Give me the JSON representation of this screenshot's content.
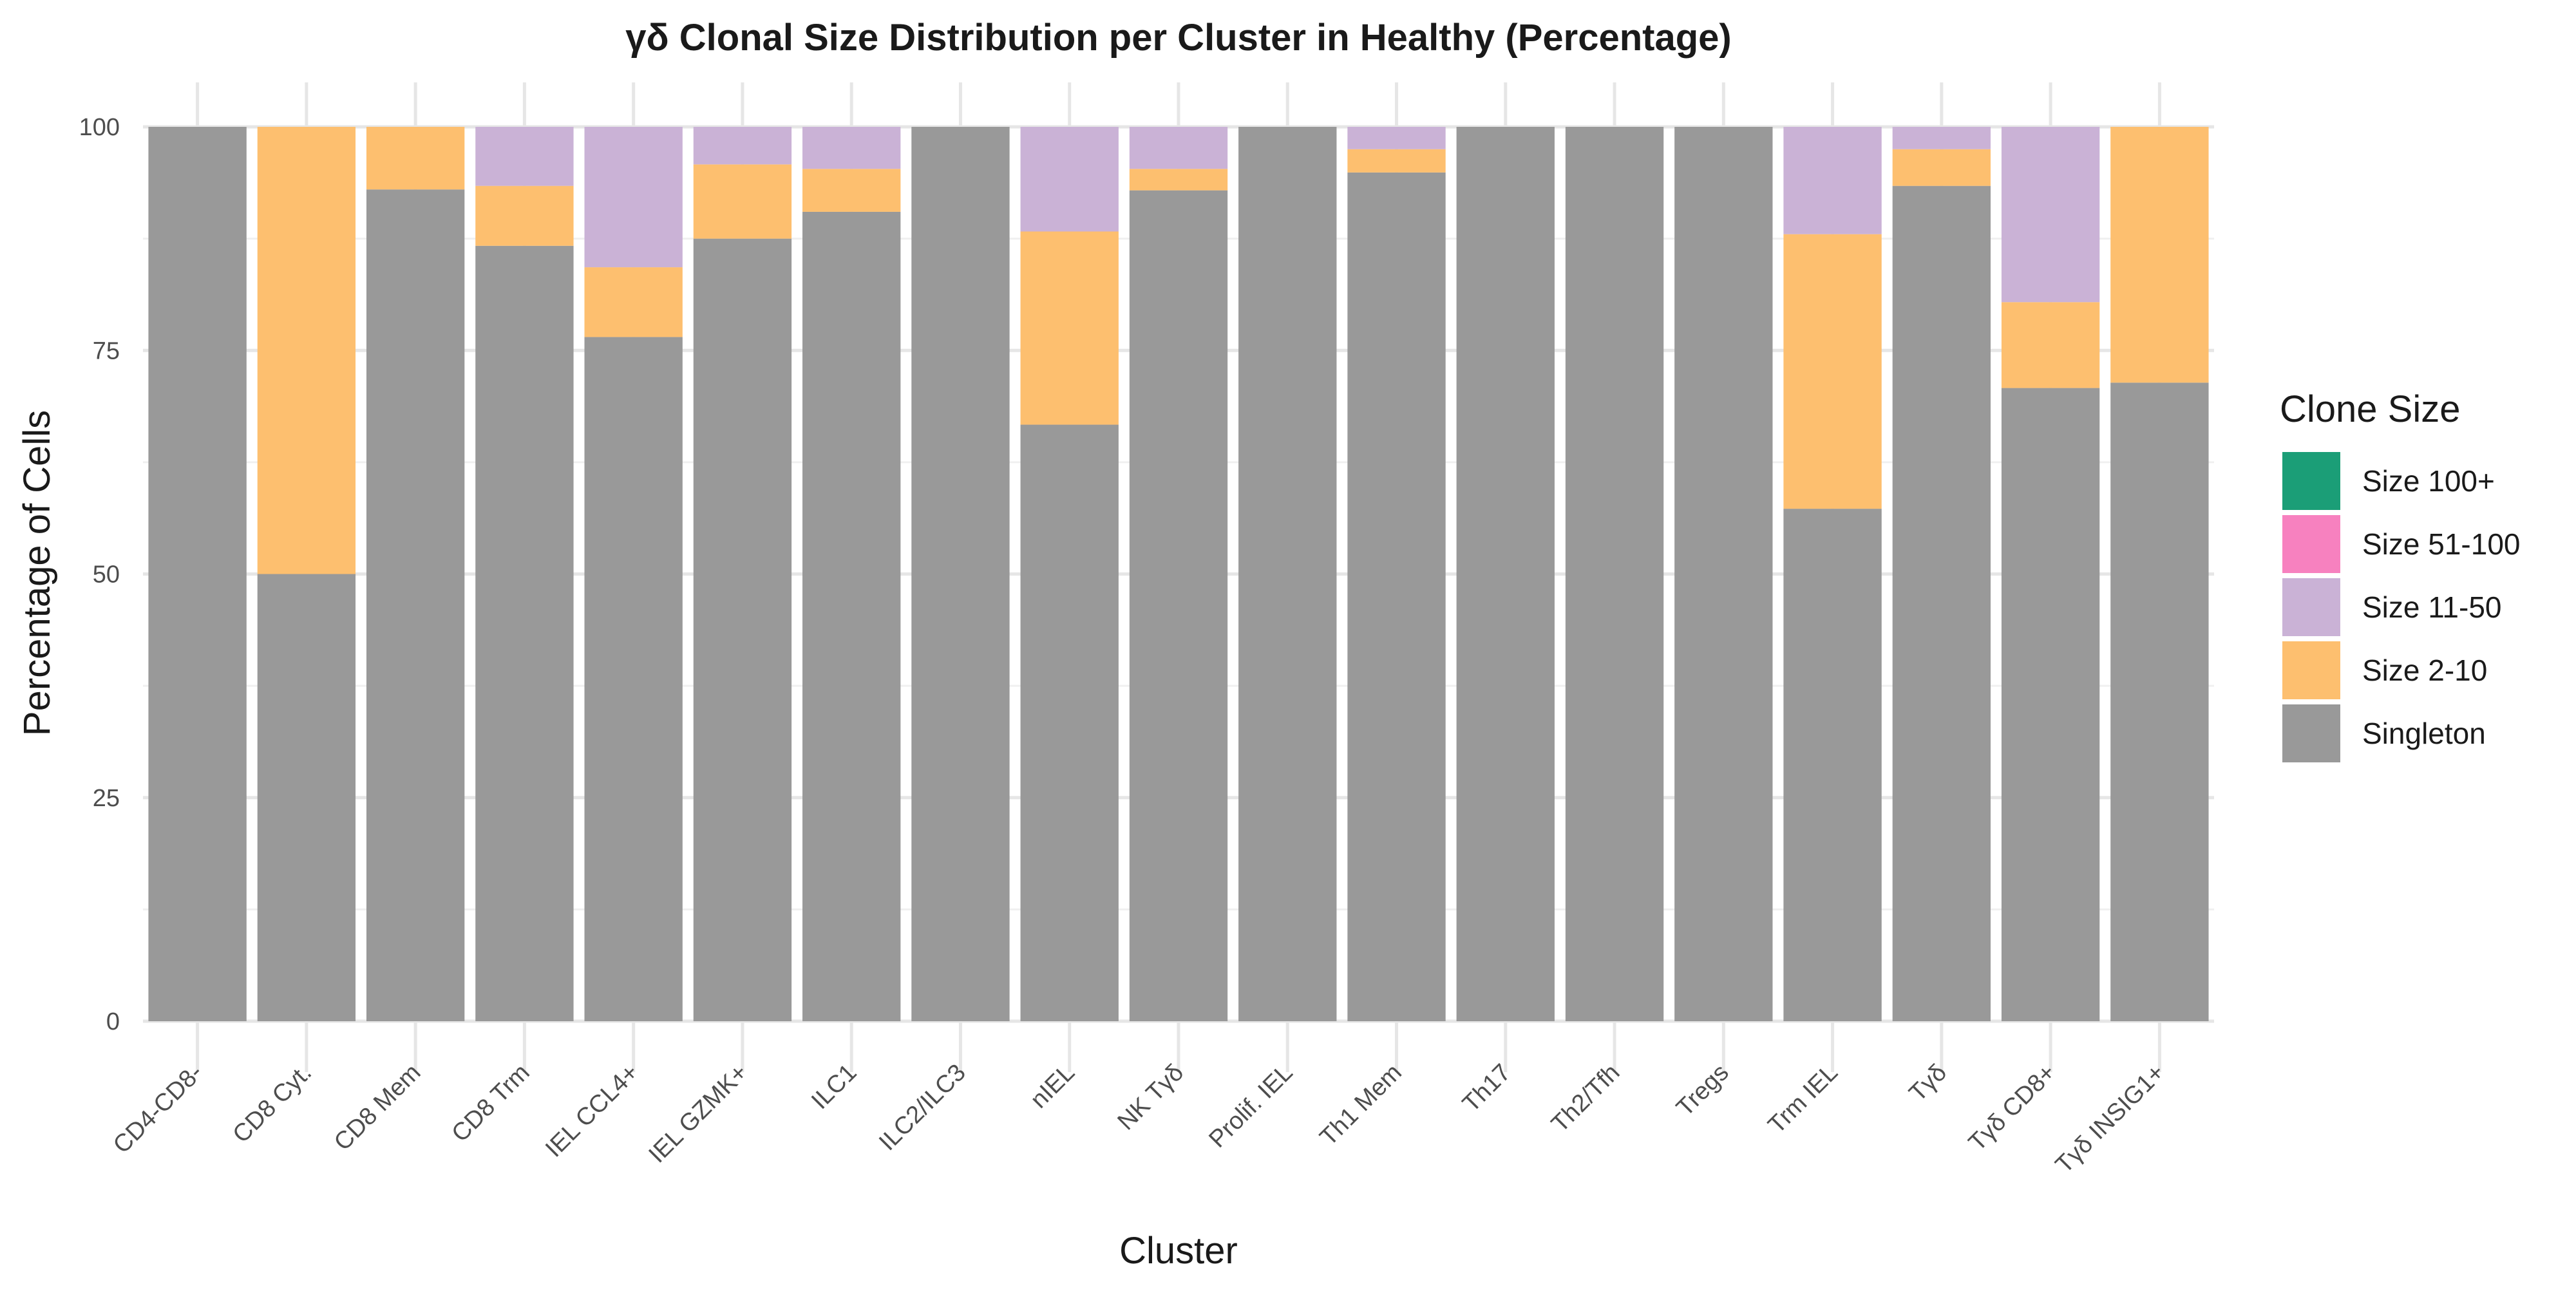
{
  "chart_data": {
    "type": "bar",
    "stacked": true,
    "title": "γδ Clonal Size Distribution per Cluster in Healthy (Percentage)",
    "xlabel": "Cluster",
    "ylabel": "Percentage of Cells",
    "ylim": [
      0,
      100
    ],
    "yticks": [
      0,
      25,
      50,
      75,
      100
    ],
    "grid": true,
    "legend": {
      "title": "Clone Size",
      "placement": "right",
      "order": [
        "Size 100+",
        "Size 51-100",
        "Size 11-50",
        "Size 2-10",
        "Singleton"
      ]
    },
    "categories": [
      "CD4-CD8-",
      "CD8 Cyt.",
      "CD8 Mem",
      "CD8 Trm",
      "IEL CCL4+",
      "IEL GZMK+",
      "ILC1",
      "ILC2/ILC3",
      "nIEL",
      "NK Tγδ",
      "Prolif. IEL",
      "Th1 Mem",
      "Th17",
      "Th2/Tfh",
      "Tregs",
      "Trm IEL",
      "Tγδ",
      "Tγδ CD8+",
      "Tγδ INSIG1+"
    ],
    "series": [
      {
        "name": "Singleton",
        "color": "#999999",
        "values": [
          100,
          50,
          93.0,
          86.7,
          76.5,
          87.5,
          90.5,
          100,
          66.7,
          92.9,
          100,
          94.9,
          100,
          100,
          100,
          57.3,
          93.4,
          70.8,
          71.4
        ]
      },
      {
        "name": "Size 2-10",
        "color": "#FDBF6F",
        "values": [
          0,
          50,
          7.0,
          6.7,
          7.8,
          8.3,
          4.8,
          0,
          21.6,
          2.4,
          0,
          2.6,
          0,
          0,
          0,
          30.7,
          4.1,
          9.6,
          28.6
        ]
      },
      {
        "name": "Size 11-50",
        "color": "#CAB2D6",
        "values": [
          0,
          0,
          0,
          6.6,
          15.7,
          4.2,
          4.7,
          0,
          11.7,
          4.7,
          0,
          2.5,
          0,
          0,
          0,
          12.0,
          2.5,
          19.6,
          0
        ]
      },
      {
        "name": "Size 51-100",
        "color": "#F781BF",
        "values": [
          0,
          0,
          0,
          0,
          0,
          0,
          0,
          0,
          0,
          0,
          0,
          0,
          0,
          0,
          0,
          0,
          0,
          0,
          0
        ]
      },
      {
        "name": "Size 100+",
        "color": "#1B9E77",
        "values": [
          0,
          0,
          0,
          0,
          0,
          0,
          0,
          0,
          0,
          0,
          0,
          0,
          0,
          0,
          0,
          0,
          0,
          0,
          0
        ]
      }
    ]
  }
}
